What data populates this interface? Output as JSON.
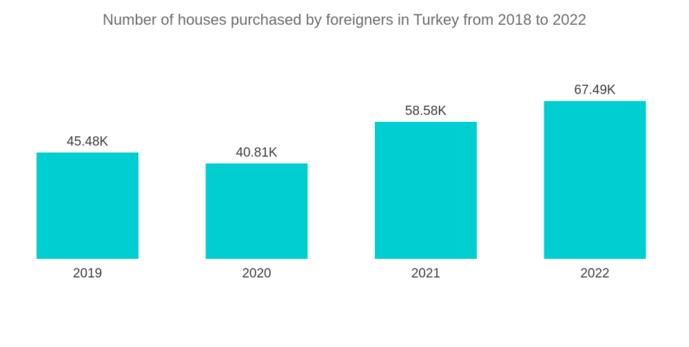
{
  "chart_data": {
    "type": "bar",
    "title": "Number of houses purchased by foreigners in Turkey from 2018 to 2022",
    "categories": [
      "2019",
      "2020",
      "2021",
      "2022"
    ],
    "values": [
      45.48,
      40.81,
      58.58,
      67.49
    ],
    "value_labels": [
      "45.48K",
      "40.81K",
      "58.58K",
      "67.49K"
    ],
    "xlabel": "",
    "ylabel": "",
    "ylim": [
      0,
      68
    ],
    "grid": false,
    "legend": "none",
    "bar_color": "#00CED1"
  }
}
